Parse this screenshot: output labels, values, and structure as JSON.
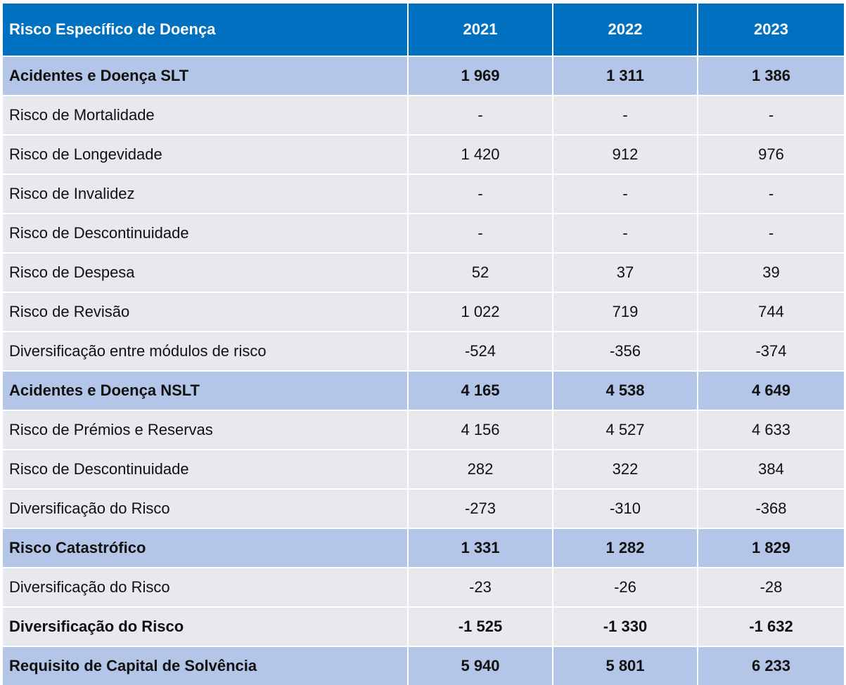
{
  "colors": {
    "header_bg": "#0070c0",
    "highlight_bg": "#b4c6e7",
    "row_bg": "#e8e9ed",
    "header_text": "#ffffff"
  },
  "table": {
    "header": [
      "Risco Específico de Doença",
      "2021",
      "2022",
      "2023"
    ],
    "rows": [
      {
        "style": "bold-blue",
        "cells": [
          "Acidentes e Doença SLT",
          "1 969",
          "1 311",
          "1 386"
        ]
      },
      {
        "style": "normal",
        "cells": [
          "Risco de Mortalidade",
          "-",
          "-",
          "-"
        ]
      },
      {
        "style": "normal",
        "cells": [
          "Risco de Longevidade",
          "1 420",
          "912",
          "976"
        ]
      },
      {
        "style": "normal",
        "cells": [
          "Risco de Invalidez",
          "-",
          "-",
          "-"
        ]
      },
      {
        "style": "normal",
        "cells": [
          "Risco de Descontinuidade",
          "-",
          "-",
          "-"
        ]
      },
      {
        "style": "normal",
        "cells": [
          "Risco de Despesa",
          "52",
          "37",
          "39"
        ]
      },
      {
        "style": "normal",
        "cells": [
          "Risco de Revisão",
          "1 022",
          "719",
          "744"
        ]
      },
      {
        "style": "normal",
        "cells": [
          "Diversificação entre módulos de risco",
          "-524",
          "-356",
          "-374"
        ]
      },
      {
        "style": "bold-blue",
        "cells": [
          "Acidentes e Doença NSLT",
          "4 165",
          "4 538",
          "4 649"
        ]
      },
      {
        "style": "normal",
        "cells": [
          "Risco de Prémios e Reservas",
          "4 156",
          "4 527",
          "4 633"
        ]
      },
      {
        "style": "normal",
        "cells": [
          "Risco de Descontinuidade",
          "282",
          "322",
          "384"
        ]
      },
      {
        "style": "normal",
        "cells": [
          "Diversificação do Risco",
          "-273",
          "-310",
          "-368"
        ]
      },
      {
        "style": "bold-blue",
        "cells": [
          "Risco Catastrófico",
          "1 331",
          "1 282",
          "1 829"
        ]
      },
      {
        "style": "normal",
        "cells": [
          "Diversificação do Risco",
          "-23",
          "-26",
          "-28"
        ]
      },
      {
        "style": "bold-plain",
        "cells": [
          "Diversificação do Risco",
          "-1 525",
          "-1 330",
          "-1 632"
        ]
      },
      {
        "style": "bold-blue",
        "cells": [
          "Requisito de Capital de Solvência",
          "5 940",
          "5 801",
          "6 233"
        ]
      }
    ]
  }
}
